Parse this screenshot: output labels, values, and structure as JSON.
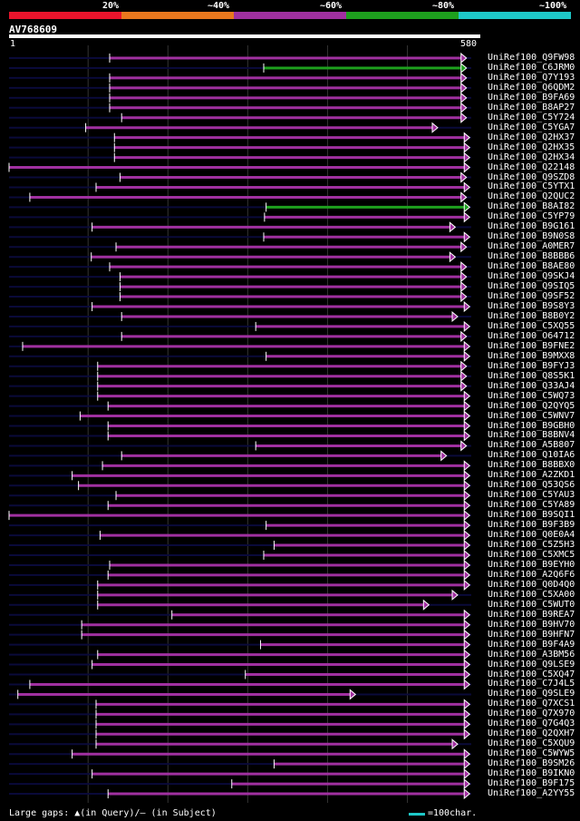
{
  "legend": {
    "segments": [
      {
        "label": "20%",
        "color": "#e8142c"
      },
      {
        "label": "~40%",
        "color": "#e8781e"
      },
      {
        "label": "~60%",
        "color": "#a030a0"
      },
      {
        "label": "~80%",
        "color": "#1ea01e"
      },
      {
        "label": "~100%",
        "color": "#1ec8c8"
      }
    ]
  },
  "query": {
    "id": "AV768609",
    "start": "1",
    "end": "580",
    "length": 580
  },
  "hits": [
    {
      "id": "UniRef100_Q9FW98",
      "start": 127,
      "end": 574,
      "color": "purple"
    },
    {
      "id": "UniRef100_C6JRM0",
      "start": 320,
      "end": 574,
      "color": "green"
    },
    {
      "id": "UniRef100_Q7Y193",
      "start": 127,
      "end": 574,
      "color": "purple"
    },
    {
      "id": "UniRef100_Q6QDM2",
      "start": 127,
      "end": 574,
      "color": "purple"
    },
    {
      "id": "UniRef100_B9FA69",
      "start": 127,
      "end": 574,
      "color": "purple"
    },
    {
      "id": "UniRef100_B8AP27",
      "start": 127,
      "end": 574,
      "color": "purple"
    },
    {
      "id": "UniRef100_C5Y724",
      "start": 142,
      "end": 574,
      "color": "purple"
    },
    {
      "id": "UniRef100_C5YGA7",
      "start": 97,
      "end": 538,
      "color": "purple"
    },
    {
      "id": "UniRef100_Q2HX37",
      "start": 133,
      "end": 578,
      "color": "purple"
    },
    {
      "id": "UniRef100_Q2HX35",
      "start": 133,
      "end": 578,
      "color": "purple"
    },
    {
      "id": "UniRef100_Q2HX34",
      "start": 133,
      "end": 578,
      "color": "purple"
    },
    {
      "id": "UniRef100_Q22148",
      "start": 1,
      "end": 578,
      "color": "purple"
    },
    {
      "id": "UniRef100_Q9SZD8",
      "start": 140,
      "end": 574,
      "color": "purple"
    },
    {
      "id": "UniRef100_C5YTX1",
      "start": 110,
      "end": 578,
      "color": "purple"
    },
    {
      "id": "UniRef100_Q2QUC2",
      "start": 27,
      "end": 574,
      "color": "purple"
    },
    {
      "id": "UniRef100_B8AI82",
      "start": 323,
      "end": 578,
      "color": "green"
    },
    {
      "id": "UniRef100_C5YP79",
      "start": 321,
      "end": 578,
      "color": "purple"
    },
    {
      "id": "UniRef100_B9G161",
      "start": 105,
      "end": 560,
      "color": "purple"
    },
    {
      "id": "UniRef100_B9N0S8",
      "start": 320,
      "end": 578,
      "color": "purple"
    },
    {
      "id": "UniRef100_A0MER7",
      "start": 135,
      "end": 574,
      "color": "purple"
    },
    {
      "id": "UniRef100_B8BBB6",
      "start": 104,
      "end": 560,
      "color": "purple"
    },
    {
      "id": "UniRef100_B8AE80",
      "start": 127,
      "end": 574,
      "color": "purple"
    },
    {
      "id": "UniRef100_Q9SKJ4",
      "start": 140,
      "end": 574,
      "color": "purple"
    },
    {
      "id": "UniRef100_Q9SIQ5",
      "start": 140,
      "end": 574,
      "color": "purple"
    },
    {
      "id": "UniRef100_Q9SF52",
      "start": 140,
      "end": 574,
      "color": "purple"
    },
    {
      "id": "UniRef100_B9S8Y3",
      "start": 105,
      "end": 578,
      "color": "purple"
    },
    {
      "id": "UniRef100_B8B0Y2",
      "start": 142,
      "end": 563,
      "color": "purple"
    },
    {
      "id": "UniRef100_C5XQ55",
      "start": 310,
      "end": 578,
      "color": "purple"
    },
    {
      "id": "UniRef100_O64712",
      "start": 142,
      "end": 574,
      "color": "purple"
    },
    {
      "id": "UniRef100_B9FNE2",
      "start": 18,
      "end": 578,
      "color": "purple"
    },
    {
      "id": "UniRef100_B9MXX8",
      "start": 323,
      "end": 578,
      "color": "purple"
    },
    {
      "id": "UniRef100_B9FYJ3",
      "start": 112,
      "end": 574,
      "color": "purple"
    },
    {
      "id": "UniRef100_Q8S5K1",
      "start": 112,
      "end": 574,
      "color": "purple"
    },
    {
      "id": "UniRef100_Q33AJ4",
      "start": 112,
      "end": 574,
      "color": "purple"
    },
    {
      "id": "UniRef100_C5WQ73",
      "start": 112,
      "end": 578,
      "color": "purple"
    },
    {
      "id": "UniRef100_Q2QYQ5",
      "start": 125,
      "end": 578,
      "color": "purple"
    },
    {
      "id": "UniRef100_C5WNV7",
      "start": 90,
      "end": 578,
      "color": "purple"
    },
    {
      "id": "UniRef100_B9GBH0",
      "start": 125,
      "end": 578,
      "color": "purple"
    },
    {
      "id": "UniRef100_B8BNV4",
      "start": 125,
      "end": 578,
      "color": "purple"
    },
    {
      "id": "UniRef100_A5B807",
      "start": 310,
      "end": 574,
      "color": "purple"
    },
    {
      "id": "UniRef100_Q10IA6",
      "start": 142,
      "end": 549,
      "color": "purple"
    },
    {
      "id": "UniRef100_B8BBX0",
      "start": 118,
      "end": 578,
      "color": "purple"
    },
    {
      "id": "UniRef100_A2ZKD1",
      "start": 80,
      "end": 578,
      "color": "purple"
    },
    {
      "id": "UniRef100_Q53QS6",
      "start": 88,
      "end": 578,
      "color": "purple"
    },
    {
      "id": "UniRef100_C5YAU3",
      "start": 135,
      "end": 578,
      "color": "purple"
    },
    {
      "id": "UniRef100_C5YA89",
      "start": 125,
      "end": 578,
      "color": "purple"
    },
    {
      "id": "UniRef100_B9SQI1",
      "start": 1,
      "end": 578,
      "color": "purple"
    },
    {
      "id": "UniRef100_B9F3B9",
      "start": 323,
      "end": 578,
      "color": "purple"
    },
    {
      "id": "UniRef100_Q0E0A4",
      "start": 115,
      "end": 578,
      "color": "purple"
    },
    {
      "id": "UniRef100_C5Z5H3",
      "start": 333,
      "end": 578,
      "color": "purple"
    },
    {
      "id": "UniRef100_C5XMC5",
      "start": 320,
      "end": 578,
      "color": "purple"
    },
    {
      "id": "UniRef100_B9EYH0",
      "start": 127,
      "end": 578,
      "color": "purple"
    },
    {
      "id": "UniRef100_A2Q6F6",
      "start": 125,
      "end": 578,
      "color": "purple"
    },
    {
      "id": "UniRef100_Q0D4Q0",
      "start": 112,
      "end": 578,
      "color": "purple"
    },
    {
      "id": "UniRef100_C5XA00",
      "start": 112,
      "end": 563,
      "color": "purple"
    },
    {
      "id": "UniRef100_C5WUT0",
      "start": 112,
      "end": 527,
      "color": "purple"
    },
    {
      "id": "UniRef100_B9REA7",
      "start": 205,
      "end": 578,
      "color": "purple"
    },
    {
      "id": "UniRef100_B9HV70",
      "start": 92,
      "end": 578,
      "color": "purple"
    },
    {
      "id": "UniRef100_B9HFN7",
      "start": 92,
      "end": 578,
      "color": "purple"
    },
    {
      "id": "UniRef100_B9F4A9",
      "start": 316,
      "end": 578,
      "color": "purple"
    },
    {
      "id": "UniRef100_A3BM56",
      "start": 112,
      "end": 578,
      "color": "purple"
    },
    {
      "id": "UniRef100_Q9LSE9",
      "start": 105,
      "end": 578,
      "color": "purple"
    },
    {
      "id": "UniRef100_C5XQ47",
      "start": 297,
      "end": 578,
      "color": "purple"
    },
    {
      "id": "UniRef100_C7J4L5",
      "start": 27,
      "end": 578,
      "color": "purple"
    },
    {
      "id": "UniRef100_Q9SLE9",
      "start": 12,
      "end": 435,
      "color": "purple"
    },
    {
      "id": "UniRef100_Q7XCS1",
      "start": 110,
      "end": 578,
      "color": "purple"
    },
    {
      "id": "UniRef100_Q7X970",
      "start": 110,
      "end": 578,
      "color": "purple"
    },
    {
      "id": "UniRef100_Q7G4Q3",
      "start": 110,
      "end": 578,
      "color": "purple"
    },
    {
      "id": "UniRef100_Q2QXH7",
      "start": 110,
      "end": 578,
      "color": "purple"
    },
    {
      "id": "UniRef100_C5XQU9",
      "start": 110,
      "end": 563,
      "color": "purple"
    },
    {
      "id": "UniRef100_C5WYW5",
      "start": 80,
      "end": 578,
      "color": "purple"
    },
    {
      "id": "UniRef100_B9SM26",
      "start": 333,
      "end": 578,
      "color": "purple"
    },
    {
      "id": "UniRef100_B9IKN0",
      "start": 105,
      "end": 578,
      "color": "purple"
    },
    {
      "id": "UniRef100_B9F175",
      "start": 280,
      "end": 578,
      "color": "purple"
    },
    {
      "id": "UniRef100_A2YY55",
      "start": 125,
      "end": 578,
      "color": "purple"
    }
  ],
  "footer": {
    "gaps_text": "Large gaps: ▲(in Query)/— (in Subject)",
    "scale_text": "=100char."
  }
}
